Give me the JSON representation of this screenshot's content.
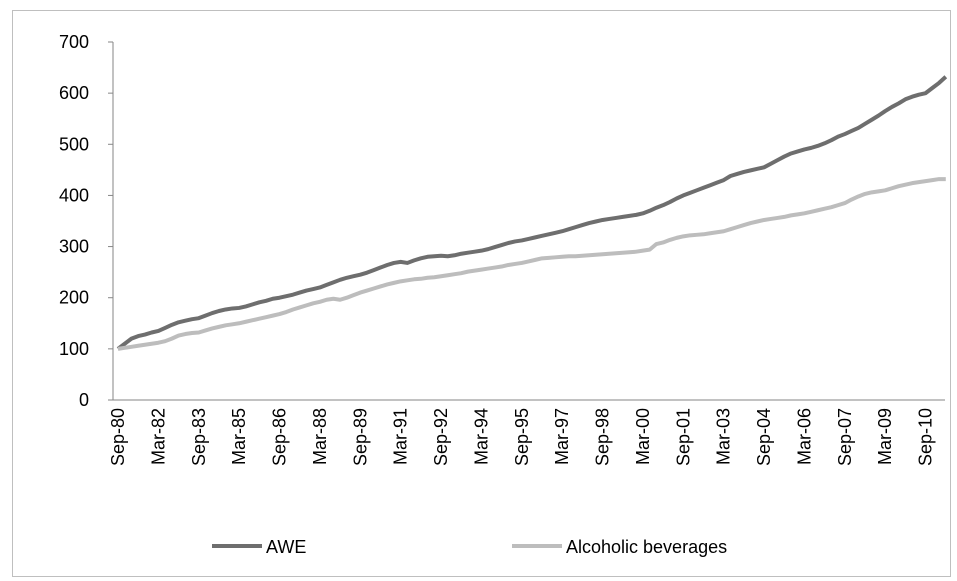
{
  "chart_data": {
    "type": "line",
    "categories": [
      "Sep-80",
      null,
      null,
      null,
      null,
      null,
      "Mar-82",
      null,
      null,
      null,
      null,
      null,
      "Sep-83",
      null,
      null,
      null,
      null,
      null,
      "Mar-85",
      null,
      null,
      null,
      null,
      null,
      "Sep-86",
      null,
      null,
      null,
      null,
      null,
      "Mar-88",
      null,
      null,
      null,
      null,
      null,
      "Sep-89",
      null,
      null,
      null,
      null,
      null,
      "Mar-91",
      null,
      null,
      null,
      null,
      null,
      "Sep-92",
      null,
      null,
      null,
      null,
      null,
      "Mar-94",
      null,
      null,
      null,
      null,
      null,
      "Sep-95",
      null,
      null,
      null,
      null,
      null,
      "Mar-97",
      null,
      null,
      null,
      null,
      null,
      "Sep-98",
      null,
      null,
      null,
      null,
      null,
      "Mar-00",
      null,
      null,
      null,
      null,
      null,
      "Sep-01",
      null,
      null,
      null,
      null,
      null,
      "Mar-03",
      null,
      null,
      null,
      null,
      null,
      "Sep-04",
      null,
      null,
      null,
      null,
      null,
      "Mar-06",
      null,
      null,
      null,
      null,
      null,
      "Sep-07",
      null,
      null,
      null,
      null,
      null,
      "Mar-09",
      null,
      null,
      null,
      null,
      null,
      "Sep-10",
      null,
      null,
      null
    ],
    "series": [
      {
        "name": "AWE",
        "color": "#6e6e6e",
        "values": [
          100,
          110,
          120,
          125,
          128,
          132,
          135,
          141,
          147,
          152,
          155,
          158,
          160,
          165,
          170,
          174,
          177,
          179,
          180,
          183,
          187,
          191,
          194,
          198,
          200,
          203,
          206,
          210,
          214,
          217,
          220,
          225,
          230,
          235,
          239,
          242,
          245,
          249,
          254,
          259,
          264,
          268,
          270,
          268,
          273,
          277,
          280,
          281,
          282,
          281,
          283,
          286,
          288,
          290,
          292,
          295,
          299,
          303,
          307,
          310,
          312,
          315,
          318,
          321,
          324,
          327,
          330,
          334,
          338,
          342,
          346,
          349,
          352,
          354,
          356,
          358,
          360,
          362,
          365,
          370,
          376,
          381,
          387,
          394,
          400,
          405,
          410,
          415,
          420,
          425,
          430,
          438,
          442,
          446,
          449,
          452,
          455,
          462,
          469,
          476,
          482,
          486,
          490,
          493,
          497,
          502,
          508,
          515,
          520,
          526,
          532,
          540,
          548,
          556,
          565,
          573,
          580,
          588,
          593,
          597,
          600,
          610,
          620,
          632
        ]
      },
      {
        "name": "Alcoholic beverages",
        "color": "#bdbdbd",
        "values": [
          100,
          102,
          104,
          106,
          108,
          110,
          112,
          115,
          120,
          126,
          129,
          131,
          132,
          136,
          140,
          143,
          146,
          148,
          150,
          153,
          156,
          159,
          162,
          165,
          168,
          172,
          177,
          181,
          185,
          189,
          192,
          196,
          198,
          196,
          200,
          205,
          210,
          214,
          218,
          222,
          226,
          229,
          232,
          234,
          236,
          237,
          239,
          240,
          242,
          244,
          246,
          248,
          251,
          253,
          255,
          257,
          259,
          261,
          264,
          266,
          268,
          271,
          274,
          277,
          278,
          279,
          280,
          281,
          281,
          282,
          283,
          284,
          285,
          286,
          287,
          288,
          289,
          290,
          292,
          294,
          305,
          308,
          313,
          317,
          320,
          322,
          323,
          324,
          326,
          328,
          330,
          334,
          338,
          342,
          346,
          349,
          352,
          354,
          356,
          358,
          361,
          363,
          365,
          368,
          371,
          374,
          377,
          381,
          385,
          392,
          398,
          403,
          406,
          408,
          410,
          414,
          418,
          421,
          424,
          426,
          428,
          430,
          432,
          432
        ]
      }
    ],
    "ylim": [
      0,
      700
    ],
    "yticks": [
      0,
      100,
      200,
      300,
      400,
      500,
      600,
      700
    ],
    "grid": false,
    "legend": "bottom"
  }
}
